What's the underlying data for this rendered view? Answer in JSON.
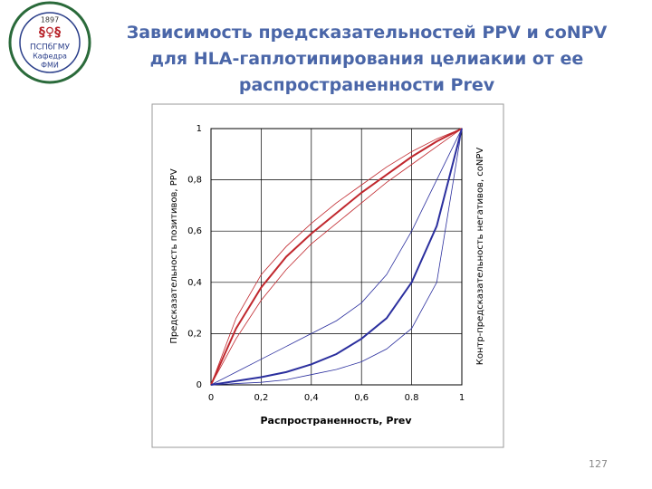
{
  "slide": {
    "title": "Зависимость предсказательностей PPV и coNPV для HLA-гаплотипирования целиакии от ее распространенности Prev",
    "page_number": "127",
    "logo": {
      "year": "1897",
      "name": "ПСПбГМУ",
      "dept": "Кафедра",
      "abbr": "ФМИ"
    }
  },
  "chart_data": {
    "type": "line",
    "xlabel": "Распространенность, Prev",
    "ylabel": "Предсказательность позитивов, PPV",
    "y2label": "Контр-предсказательность негативов, coNPV",
    "x": [
      0,
      0.1,
      0.2,
      0.3,
      0.4,
      0.5,
      0.6,
      0.7,
      0.8,
      0.9,
      1
    ],
    "xlim": [
      0,
      1
    ],
    "ylim": [
      0,
      1
    ],
    "y2lim": [
      0,
      1
    ],
    "xticks": [
      0,
      {
        "value": 0.2,
        "label": "0,2"
      },
      {
        "value": 0.4,
        "label": "0,4"
      },
      {
        "value": 0.6,
        "label": "0,6"
      },
      {
        "value": 0.8,
        "label": "0.8"
      },
      1
    ],
    "yticks": [
      0,
      {
        "value": 0.2,
        "label": "0,2"
      },
      {
        "value": 0.4,
        "label": "0,4"
      },
      {
        "value": 0.6,
        "label": "0,6"
      },
      {
        "value": 0.8,
        "label": "0,8"
      },
      1
    ],
    "grid": true,
    "series": [
      {
        "color": "#c0272d",
        "line_width": 2,
        "values": [
          0,
          0.22,
          0.38,
          0.5,
          0.59,
          0.67,
          0.75,
          0.82,
          0.89,
          0.95,
          1
        ]
      },
      {
        "color": "#c0272d",
        "line_width": 0.8,
        "values": [
          0,
          0.26,
          0.43,
          0.54,
          0.63,
          0.71,
          0.78,
          0.85,
          0.91,
          0.96,
          1
        ]
      },
      {
        "color": "#c0272d",
        "line_width": 0.8,
        "values": [
          0,
          0.18,
          0.33,
          0.45,
          0.55,
          0.63,
          0.71,
          0.79,
          0.86,
          0.93,
          1
        ]
      },
      {
        "color": "#2b2f9e",
        "line_width": 2,
        "axis": "y2",
        "values": [
          0,
          0.015,
          0.03,
          0.05,
          0.08,
          0.12,
          0.18,
          0.26,
          0.4,
          0.62,
          1
        ]
      },
      {
        "color": "#2b2f9e",
        "line_width": 0.8,
        "axis": "y2",
        "values": [
          0,
          0.05,
          0.1,
          0.15,
          0.2,
          0.25,
          0.32,
          0.43,
          0.6,
          0.8,
          1
        ]
      },
      {
        "color": "#2b2f9e",
        "line_width": 0.8,
        "axis": "y2",
        "values": [
          0,
          0.005,
          0.01,
          0.02,
          0.04,
          0.06,
          0.09,
          0.14,
          0.22,
          0.4,
          1
        ]
      }
    ]
  }
}
